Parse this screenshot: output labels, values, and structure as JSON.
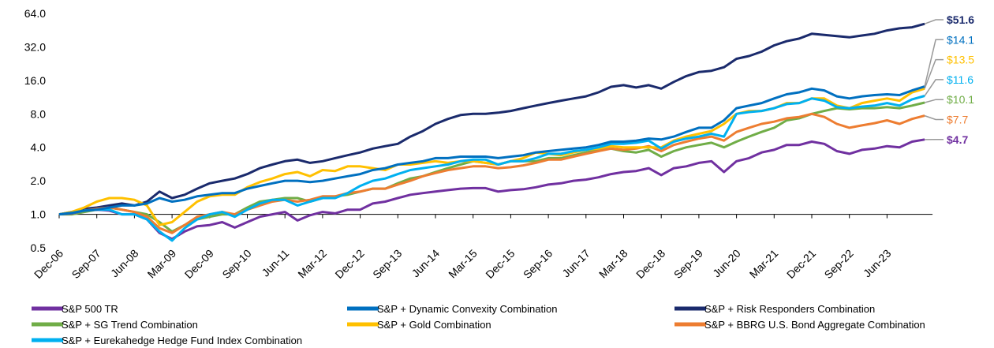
{
  "chart_data": {
    "type": "line",
    "log_scale": true,
    "categories": [
      "Dec-06",
      null,
      null,
      "Sep-07",
      null,
      null,
      "Jun-08",
      null,
      null,
      "Mar-09",
      null,
      null,
      "Dec-09",
      null,
      null,
      "Sep-10",
      null,
      null,
      "Jun-11",
      null,
      null,
      "Mar-12",
      null,
      null,
      "Dec-12",
      null,
      null,
      "Sep-13",
      null,
      null,
      "Jun-14",
      null,
      null,
      "Mar-15",
      null,
      null,
      "Dec-15",
      null,
      null,
      "Sep-16",
      null,
      null,
      "Jun-17",
      null,
      null,
      "Mar-18",
      null,
      null,
      "Dec-18",
      null,
      null,
      "Sep-19",
      null,
      null,
      "Jun-20",
      null,
      null,
      "Mar-21",
      null,
      null,
      "Dec-21",
      null,
      null,
      "Sep-22",
      null,
      null,
      "Jun-23",
      null,
      null,
      null
    ],
    "ylim": [
      0.5,
      64
    ],
    "yticks": [
      0.5,
      {
        "value": 1,
        "label": "1.0"
      },
      {
        "value": 2,
        "label": "2.0"
      },
      {
        "value": 4,
        "label": "4.0"
      },
      {
        "value": 8,
        "label": "8.0"
      },
      {
        "value": 16,
        "label": "16.0"
      },
      {
        "value": 32,
        "label": "32.0"
      },
      {
        "value": 64,
        "label": "64.0"
      }
    ],
    "series": [
      {
        "name": "S&P 500 TR",
        "color": "#7030a0",
        "end_label": "$4.7",
        "values": [
          1.0,
          1.02,
          1.08,
          1.1,
          1.08,
          1.0,
          1.0,
          0.9,
          0.68,
          0.6,
          0.7,
          0.78,
          0.8,
          0.85,
          0.76,
          0.85,
          0.95,
          1.0,
          1.05,
          0.88,
          0.98,
          1.05,
          1.02,
          1.1,
          1.1,
          1.25,
          1.3,
          1.4,
          1.5,
          1.55,
          1.6,
          1.65,
          1.7,
          1.72,
          1.72,
          1.6,
          1.65,
          1.68,
          1.75,
          1.85,
          1.9,
          2.0,
          2.05,
          2.15,
          2.3,
          2.4,
          2.45,
          2.6,
          2.25,
          2.6,
          2.7,
          2.9,
          3.0,
          2.4,
          3.0,
          3.2,
          3.6,
          3.8,
          4.2,
          4.2,
          4.5,
          4.3,
          3.7,
          3.5,
          3.8,
          3.9,
          4.1,
          4.0,
          4.5,
          4.7
        ]
      },
      {
        "name": "S&P + Dynamic Convexity Combination",
        "color": "#0070c0",
        "end_label": "$14.1",
        "values": [
          1.0,
          1.03,
          1.08,
          1.1,
          1.15,
          1.2,
          1.2,
          1.25,
          1.4,
          1.3,
          1.35,
          1.45,
          1.5,
          1.55,
          1.55,
          1.7,
          1.8,
          1.9,
          2.0,
          2.0,
          1.95,
          2.0,
          2.1,
          2.2,
          2.3,
          2.5,
          2.6,
          2.8,
          2.9,
          3.0,
          3.2,
          3.2,
          3.3,
          3.3,
          3.3,
          3.2,
          3.3,
          3.4,
          3.6,
          3.7,
          3.8,
          3.9,
          4.0,
          4.2,
          4.5,
          4.5,
          4.6,
          4.8,
          4.7,
          5.0,
          5.5,
          6.0,
          6.0,
          7.0,
          9.0,
          9.5,
          10.0,
          11.0,
          12.0,
          12.5,
          13.5,
          13.0,
          11.5,
          11.0,
          11.5,
          11.8,
          12.0,
          11.8,
          13.0,
          14.1
        ]
      },
      {
        "name": "S&P + Risk Responders Combination",
        "color": "#1a2a6c",
        "end_label": "$51.6",
        "values": [
          1.0,
          1.05,
          1.12,
          1.15,
          1.2,
          1.25,
          1.2,
          1.3,
          1.6,
          1.4,
          1.5,
          1.7,
          1.9,
          2.0,
          2.1,
          2.3,
          2.6,
          2.8,
          3.0,
          3.1,
          2.9,
          3.0,
          3.2,
          3.4,
          3.6,
          3.9,
          4.1,
          4.3,
          5.0,
          5.6,
          6.5,
          7.2,
          7.8,
          8.0,
          8.0,
          8.2,
          8.5,
          9.0,
          9.5,
          10.0,
          10.5,
          11.0,
          11.5,
          12.5,
          14.0,
          14.5,
          13.8,
          14.5,
          13.5,
          15.5,
          17.5,
          19.0,
          19.5,
          21.0,
          25.0,
          26.5,
          29.0,
          33.0,
          36.0,
          38.0,
          42.0,
          41.0,
          40.0,
          39.0,
          40.5,
          42.0,
          45.0,
          47.0,
          48.0,
          51.6
        ]
      },
      {
        "name": "S&P + SG Trend Combination",
        "color": "#70ad47",
        "end_label": "$10.1",
        "values": [
          1.0,
          1.0,
          1.05,
          1.1,
          1.15,
          1.1,
          1.05,
          1.0,
          0.85,
          0.7,
          0.8,
          0.9,
          0.95,
          1.0,
          1.0,
          1.15,
          1.3,
          1.35,
          1.4,
          1.4,
          1.3,
          1.4,
          1.45,
          1.5,
          1.6,
          1.7,
          1.7,
          1.9,
          2.1,
          2.2,
          2.4,
          2.6,
          2.8,
          3.0,
          2.9,
          2.8,
          3.0,
          3.0,
          3.0,
          3.2,
          3.2,
          3.4,
          3.6,
          3.8,
          3.9,
          3.7,
          3.6,
          3.8,
          3.3,
          3.7,
          4.0,
          4.2,
          4.4,
          4.0,
          4.5,
          5.0,
          5.5,
          6.0,
          7.0,
          7.3,
          8.0,
          8.5,
          9.0,
          8.8,
          9.0,
          9.0,
          9.2,
          9.0,
          9.5,
          10.1
        ]
      },
      {
        "name": "S&P + Gold Combination",
        "color": "#ffc000",
        "end_label": "$13.5",
        "values": [
          1.0,
          1.05,
          1.15,
          1.3,
          1.4,
          1.4,
          1.35,
          1.2,
          0.8,
          0.85,
          1.05,
          1.3,
          1.45,
          1.5,
          1.5,
          1.75,
          1.95,
          2.1,
          2.3,
          2.4,
          2.2,
          2.5,
          2.45,
          2.7,
          2.7,
          2.6,
          2.5,
          2.8,
          2.8,
          2.9,
          3.0,
          2.9,
          3.0,
          3.0,
          2.9,
          2.8,
          3.0,
          3.2,
          3.6,
          3.5,
          3.4,
          3.6,
          3.8,
          3.9,
          4.1,
          4.0,
          4.0,
          4.0,
          4.0,
          4.6,
          5.0,
          5.3,
          5.6,
          6.5,
          8.0,
          8.5,
          8.5,
          9.0,
          10.0,
          10.0,
          11.0,
          11.0,
          9.5,
          9.0,
          10.0,
          10.5,
          11.0,
          10.5,
          12.5,
          13.5
        ]
      },
      {
        "name": "S&P + BBRG U.S. Bond Aggregate Combination",
        "color": "#ed7d31",
        "end_label": "$7.7",
        "values": [
          1.0,
          1.03,
          1.08,
          1.12,
          1.15,
          1.1,
          1.05,
          0.95,
          0.75,
          0.68,
          0.8,
          0.95,
          1.0,
          1.05,
          1.0,
          1.1,
          1.2,
          1.3,
          1.35,
          1.3,
          1.35,
          1.45,
          1.45,
          1.55,
          1.6,
          1.7,
          1.7,
          1.85,
          2.0,
          2.2,
          2.35,
          2.5,
          2.6,
          2.7,
          2.7,
          2.6,
          2.65,
          2.75,
          2.9,
          3.1,
          3.1,
          3.3,
          3.5,
          3.7,
          3.9,
          3.8,
          3.9,
          4.1,
          3.7,
          4.2,
          4.5,
          4.8,
          5.0,
          4.6,
          5.5,
          6.0,
          6.5,
          6.8,
          7.3,
          7.5,
          8.0,
          7.5,
          6.5,
          6.0,
          6.3,
          6.6,
          7.0,
          6.5,
          7.2,
          7.7
        ]
      },
      {
        "name": "S&P + Eurekahedge Hedge Fund Index Combination",
        "color": "#00b0f0",
        "end_label": "$11.6",
        "values": [
          1.0,
          1.03,
          1.08,
          1.1,
          1.1,
          1.0,
          1.0,
          0.9,
          0.7,
          0.58,
          0.75,
          0.9,
          1.0,
          1.05,
          0.95,
          1.1,
          1.25,
          1.35,
          1.35,
          1.2,
          1.3,
          1.4,
          1.4,
          1.55,
          1.8,
          2.0,
          2.1,
          2.3,
          2.5,
          2.6,
          2.7,
          2.8,
          3.0,
          3.1,
          3.1,
          2.8,
          3.0,
          3.0,
          3.2,
          3.5,
          3.5,
          3.7,
          3.8,
          4.0,
          4.3,
          4.3,
          4.4,
          4.6,
          3.9,
          4.5,
          4.8,
          5.0,
          5.3,
          5.0,
          8.0,
          8.3,
          8.5,
          9.0,
          9.8,
          10.0,
          11.0,
          10.5,
          9.2,
          9.0,
          9.3,
          9.5,
          10.0,
          9.5,
          10.8,
          11.6
        ]
      }
    ]
  }
}
